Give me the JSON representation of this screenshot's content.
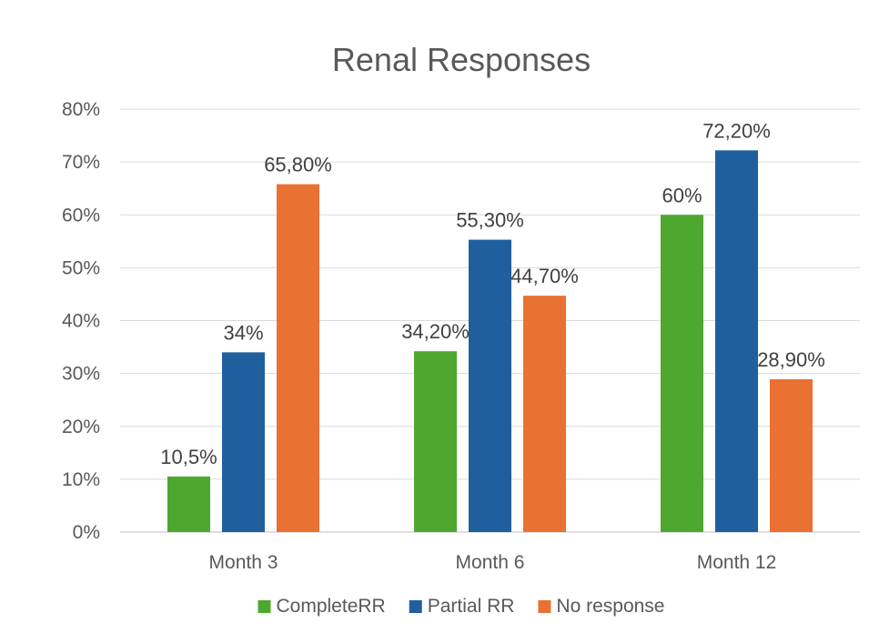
{
  "chart_data": {
    "type": "bar",
    "title": "Renal Responses",
    "xlabel": "",
    "ylabel": "",
    "categories": [
      "Month 3",
      "Month 6",
      "Month 12"
    ],
    "series": [
      {
        "name": "CompleteRR",
        "color": "#4EA72E",
        "values": [
          10.5,
          34.2,
          60
        ],
        "labels": [
          "10,5%",
          "34,20%",
          "60%"
        ]
      },
      {
        "name": "Partial RR",
        "color": "#1F5F9E",
        "values": [
          34,
          55.3,
          72.2
        ],
        "labels": [
          "34%",
          "55,30%",
          "72,20%"
        ]
      },
      {
        "name": "No response",
        "color": "#E97132",
        "values": [
          65.8,
          44.7,
          28.9
        ],
        "labels": [
          "65,80%",
          "44,70%",
          "28,90%"
        ]
      }
    ],
    "ylim": [
      0,
      80
    ],
    "yticks": [
      0,
      10,
      20,
      30,
      40,
      50,
      60,
      70,
      80
    ],
    "ytick_labels": [
      "0%",
      "10%",
      "20%",
      "30%",
      "40%",
      "50%",
      "60%",
      "70%",
      "80%"
    ],
    "grid": true,
    "legend_position": "bottom"
  }
}
